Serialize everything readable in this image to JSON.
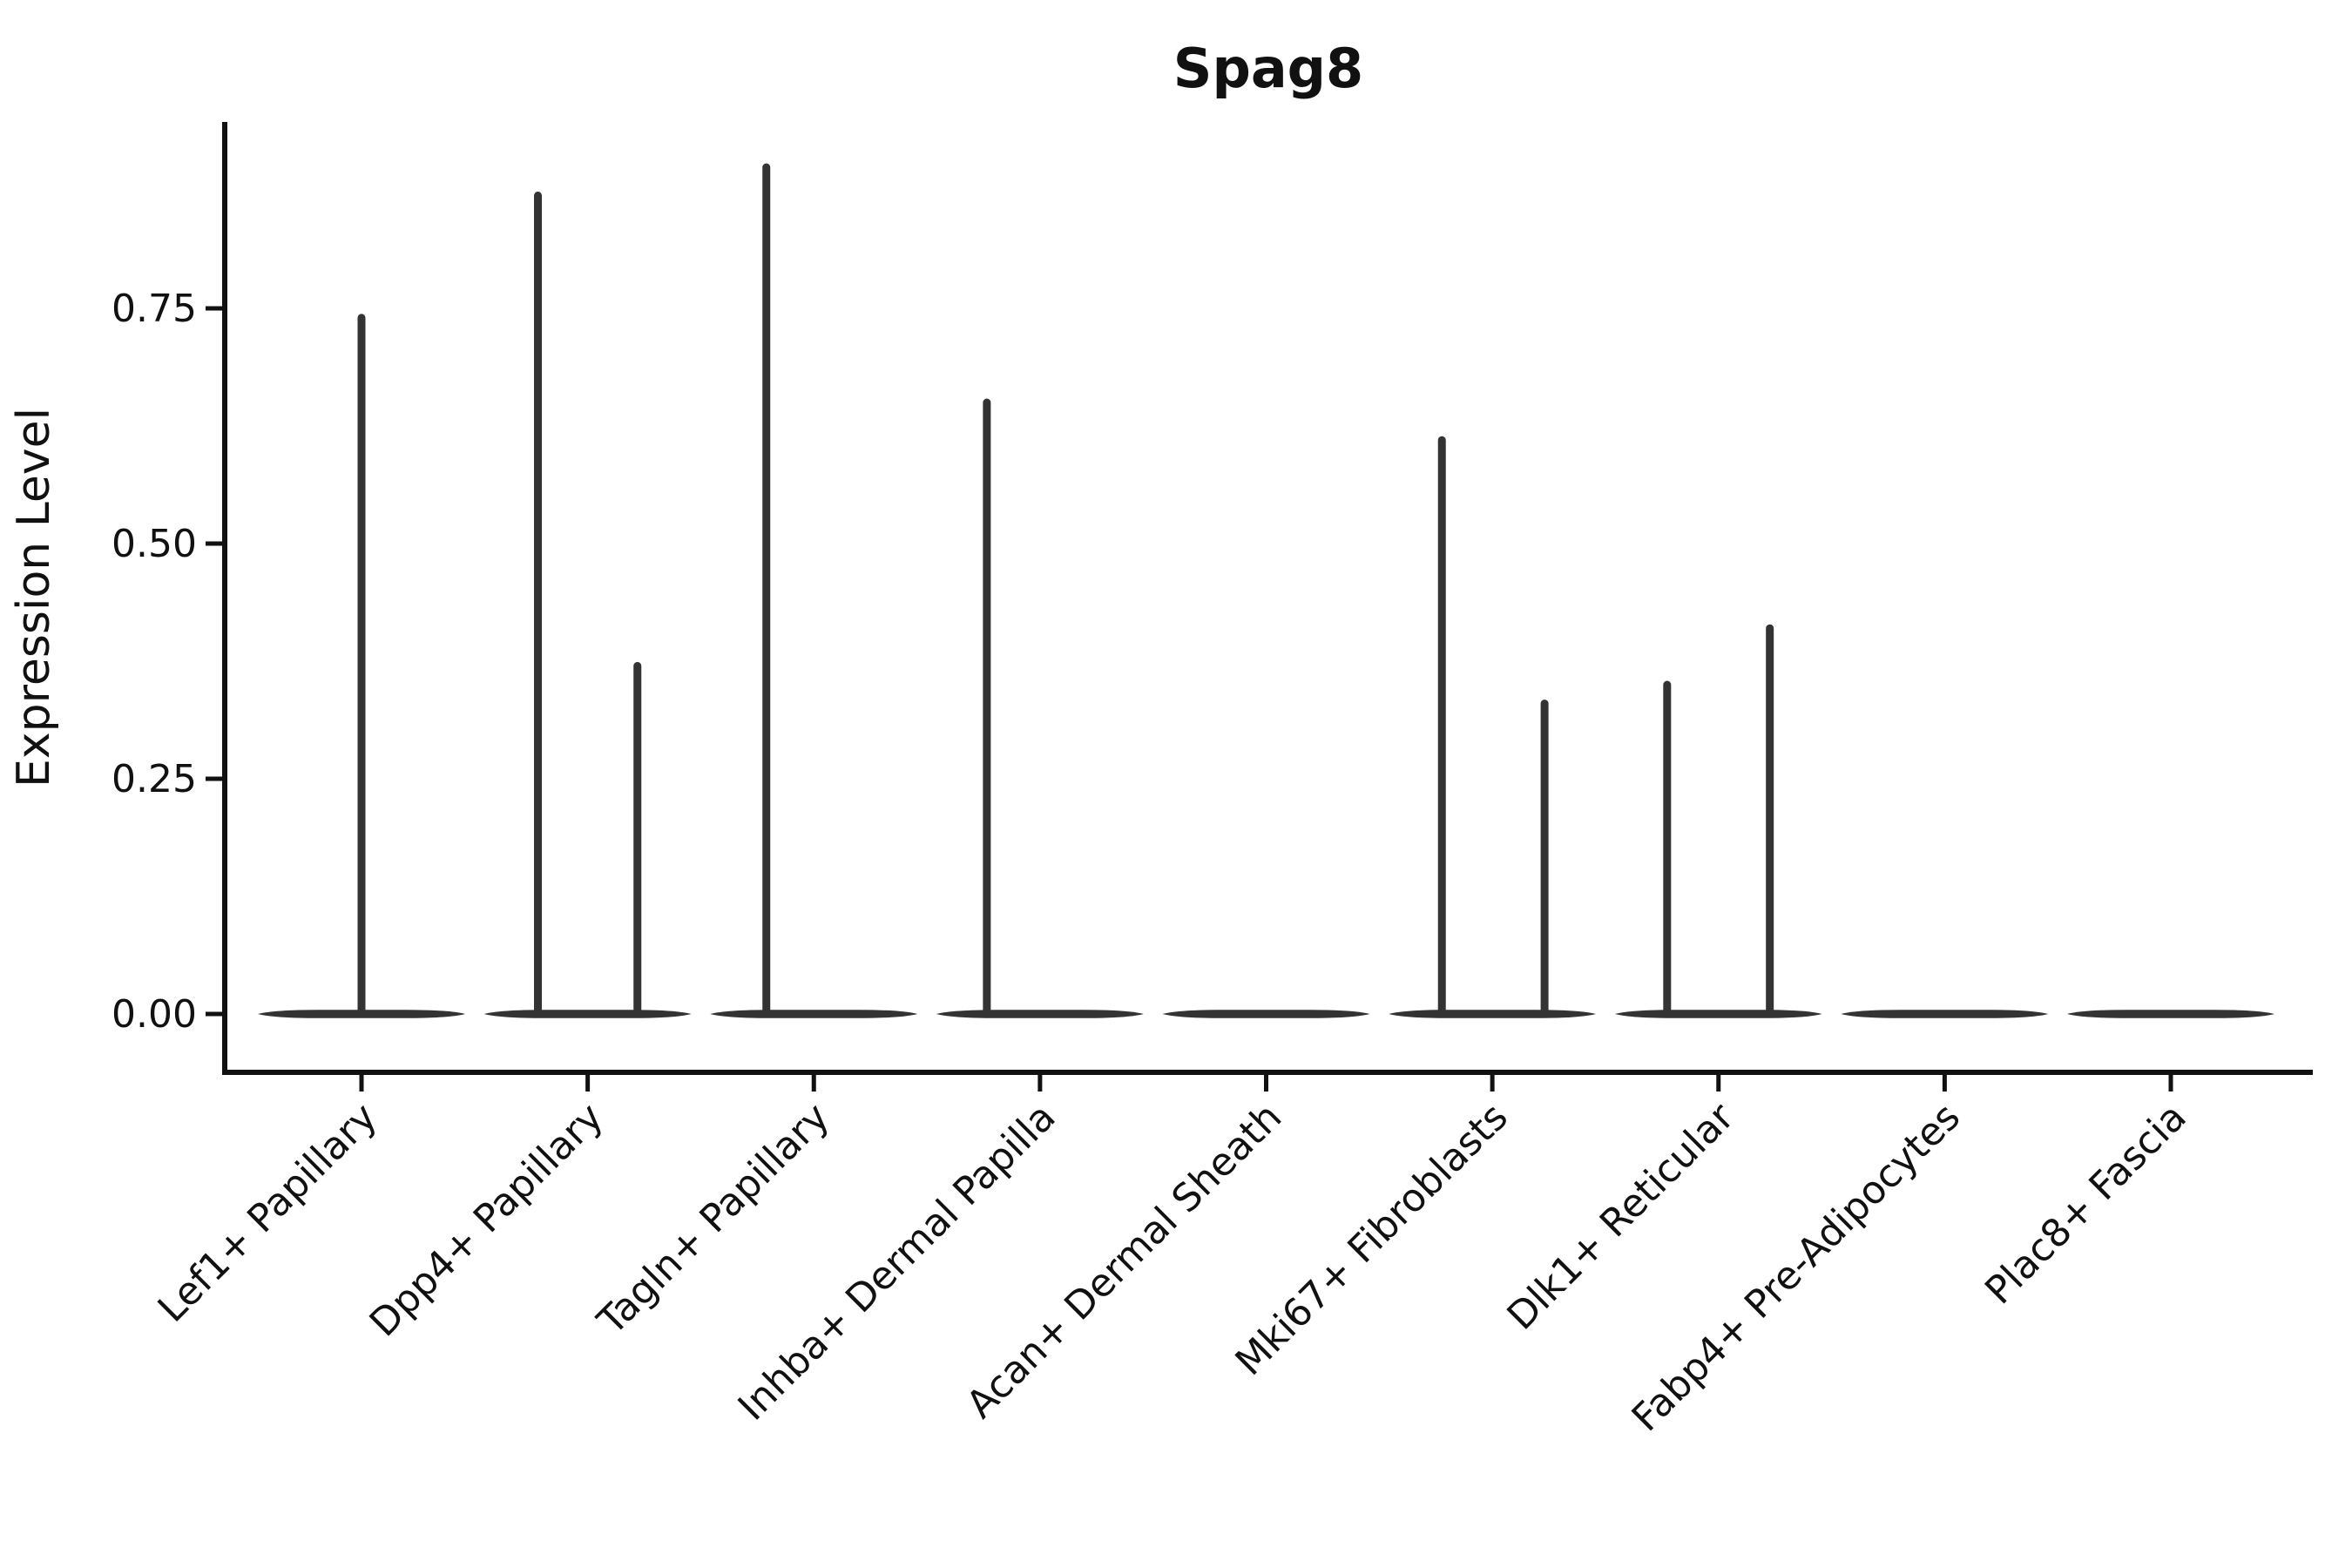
{
  "chart_data": {
    "type": "violin",
    "title": "Spag8",
    "ylabel": "Expression Level",
    "xlabel": "",
    "legend_position": "none",
    "grid": false,
    "ylim": [
      -0.06,
      0.95
    ],
    "y_ticks": [
      {
        "label": "0.00",
        "value": 0.0
      },
      {
        "label": "0.25",
        "value": 0.25
      },
      {
        "label": "0.50",
        "value": 0.5
      },
      {
        "label": "0.75",
        "value": 0.75
      }
    ],
    "categories": [
      "Lef1+ Papillary",
      "Dpp4+ Papillary",
      "Tagln+ Papillary",
      "Inhba+ Dermal Papilla",
      "Acan+ Dermal Sheath",
      "Mki67+ Fibroblasts",
      "Dlk1+ Reticular",
      "Fabp4+ Pre-Adipocytes",
      "Plac8+ Fascia"
    ],
    "violins": [
      {
        "category": "Lef1+ Papillary",
        "zero_baseline": true,
        "spikes": [
          {
            "offset_frac": 0.0,
            "value": 0.74
          }
        ]
      },
      {
        "category": "Dpp4+ Papillary",
        "zero_baseline": true,
        "spikes": [
          {
            "offset_frac": -0.22,
            "value": 0.87
          },
          {
            "offset_frac": 0.22,
            "value": 0.37
          }
        ]
      },
      {
        "category": "Tagln+ Papillary",
        "zero_baseline": true,
        "spikes": [
          {
            "offset_frac": -0.21,
            "value": 0.9
          }
        ]
      },
      {
        "category": "Inhba+ Dermal Papilla",
        "zero_baseline": true,
        "spikes": [
          {
            "offset_frac": -0.235,
            "value": 0.65
          }
        ]
      },
      {
        "category": "Acan+ Dermal Sheath",
        "zero_baseline": true,
        "spikes": []
      },
      {
        "category": "Mki67+ Fibroblasts",
        "zero_baseline": true,
        "spikes": [
          {
            "offset_frac": -0.223,
            "value": 0.61
          },
          {
            "offset_frac": 0.231,
            "value": 0.33
          }
        ]
      },
      {
        "category": "Dlk1+ Reticular",
        "zero_baseline": true,
        "spikes": [
          {
            "offset_frac": -0.227,
            "value": 0.35
          },
          {
            "offset_frac": 0.227,
            "value": 0.41
          }
        ]
      },
      {
        "category": "Fabp4+ Pre-Adipocytes",
        "zero_baseline": true,
        "spikes": []
      },
      {
        "category": "Plac8+ Fascia",
        "zero_baseline": true,
        "spikes": []
      }
    ],
    "colors": {
      "violin_stroke": "#333333",
      "axis": "#111111",
      "background": "#ffffff"
    }
  }
}
